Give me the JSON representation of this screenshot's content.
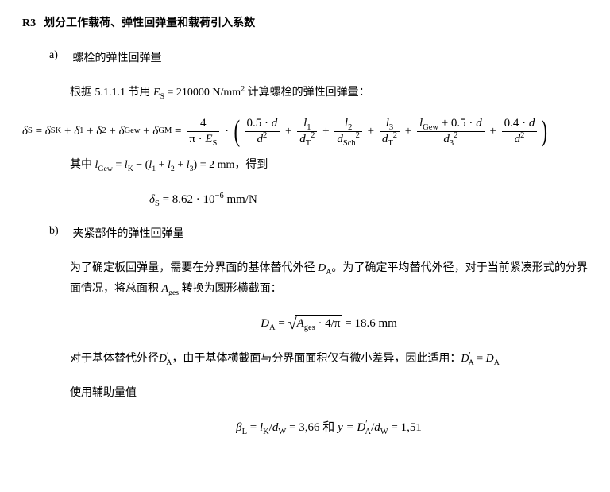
{
  "heading": {
    "label": "R3",
    "title": "划分工作载荷、弹性回弹量和载荷引入系数"
  },
  "item_a": {
    "label": "a)",
    "title": "螺栓的弹性回弹量",
    "line1_pre": "根据 5.1.1.1 节用 ",
    "line1_mid": " = 210000 N/mm",
    "line1_post": " 计算螺栓的弹性回弹量：",
    "es_var": "E",
    "es_sub": "S",
    "where_pre": "其中 ",
    "where_mid": " − (",
    "where_eq": " = ",
    "where_plus1": " + ",
    "where_plus2": " + ",
    "where_close": ") = 2 mm，得到",
    "lgew_var": "l",
    "lgew_sub": "Gew",
    "lk_var": "l",
    "lk_sub": "K",
    "l1_var": "l",
    "l1_sub": "1",
    "l2_var": "l",
    "l2_sub": "2",
    "l3_var": "l",
    "l3_sub": "3",
    "result_pre": "δ",
    "result_sub": "S",
    "result_val": " = 8.62 · 10",
    "result_exp": "−6",
    "result_unit": " mm/N",
    "eq": {
      "delta": "δ",
      "sS": "S",
      "sSK": "SK",
      "s1": "1",
      "s2": "2",
      "sGew": "Gew",
      "sGM": "GM",
      "num4": "4",
      "pi": "π · ",
      "E": "E",
      "t05d": "0.5 · ",
      "t04d": "0.4 · ",
      "d": "d",
      "d2": "2",
      "l": "l",
      "dT": "T",
      "dSch": "Sch",
      "d3": "3",
      "lGew": "Gew",
      "plus05d": " + 0.5 · "
    }
  },
  "item_b": {
    "label": "b)",
    "title": "夹紧部件的弹性回弹量",
    "p1_a": "为了确定板回弹量，需要在分界面的基体替代外径 ",
    "p1_b": "。为了确定平均替代外径，对于当前紧凑形式的分界面情况，将总面积 ",
    "p1_c": " 转换为圆形横截面：",
    "DA_var": "D",
    "DA_sub": "A",
    "Ages_var": "A",
    "Ages_sub": "ges",
    "eq_DA_pre": "D",
    "eq_DA_sub": "A",
    "eq_DA_eq": " = ",
    "eq_DA_sqrt_a": "A",
    "eq_DA_sqrt_sub": "ges",
    "eq_DA_mid": " · 4/π",
    "eq_DA_val": " = 18.6 mm",
    "p2_a": "对于基体替代外径",
    "p2_b": "，由于基体横截面与分界面面积仅有微小差异，因此适用：",
    "p2_eq_lhs": "D",
    "p2_eq_sub": "A",
    "p2_eq_prime": "′",
    "p2_eq_rhs": " = ",
    "p3": "使用辅助量值",
    "final_beta": "β",
    "final_L": "L",
    "final_eq1": " = ",
    "final_lk": "l",
    "final_lk_sub": "K",
    "final_dw": "d",
    "final_dw_sub": "W",
    "final_slash": "/",
    "final_v1": " = 3,66 和 ",
    "final_y": "y =  ",
    "final_v2": " = 1,51"
  }
}
